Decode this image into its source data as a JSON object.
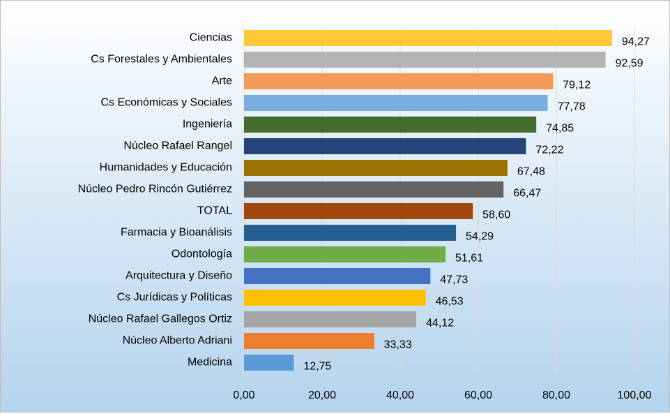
{
  "chart_data": {
    "type": "bar",
    "orientation": "horizontal",
    "categories": [
      "Ciencias",
      "Cs Forestales y Ambientales",
      "Arte",
      "Cs Económicas y Sociales",
      "Ingeniería",
      "Núcleo Rafael Rangel",
      "Humanidades y Educación",
      "Núcleo Pedro Rincón Gutiérrez",
      "TOTAL",
      "Farmacia y Bioanálisis",
      "Odontología",
      "Arquitectura y Diseño",
      "Cs Jurídicas y Políticas",
      "Núcleo Rafael Gallegos Ortiz",
      "Núcleo Alberto Adriani",
      "Medicina"
    ],
    "values": [
      94.27,
      92.59,
      79.12,
      77.78,
      74.85,
      72.22,
      67.48,
      66.47,
      58.6,
      54.29,
      51.61,
      47.73,
      46.53,
      44.12,
      33.33,
      12.75
    ],
    "value_labels": [
      "94,27",
      "92,59",
      "79,12",
      "77,78",
      "74,85",
      "72,22",
      "67,48",
      "66,47",
      "58,60",
      "54,29",
      "51,61",
      "47,73",
      "46,53",
      "44,12",
      "33,33",
      "12,75"
    ],
    "colors": [
      "#ffc839",
      "#b4b4b4",
      "#f29a5a",
      "#7aade0",
      "#436b2d",
      "#264478",
      "#9c7300",
      "#636363",
      "#9e480e",
      "#255e91",
      "#70ad47",
      "#4472c4",
      "#ffc000",
      "#a5a5a5",
      "#ed7d31",
      "#5b9bd5"
    ],
    "xlim": [
      0,
      100
    ],
    "xticks": [
      {
        "value": 0,
        "label": "0,00"
      },
      {
        "value": 20,
        "label": "20,00"
      },
      {
        "value": 40,
        "label": "40,00"
      },
      {
        "value": 60,
        "label": "60,00"
      },
      {
        "value": 80,
        "label": "80,00"
      },
      {
        "value": 100,
        "label": "100,00"
      }
    ],
    "grid": true
  }
}
